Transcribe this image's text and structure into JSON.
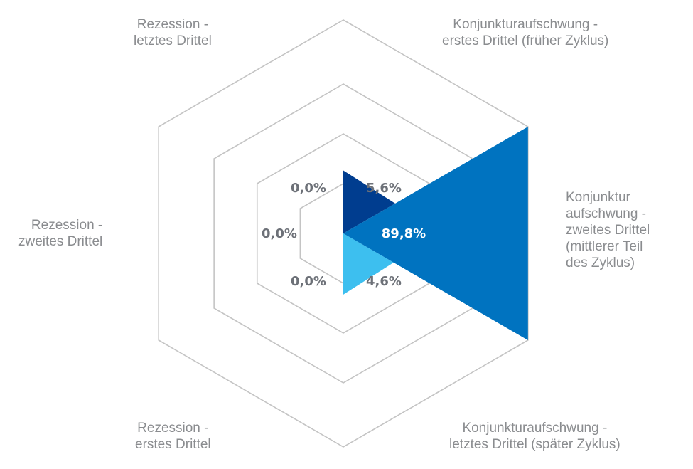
{
  "chart_data": {
    "type": "radar",
    "title": "",
    "value_format": "percent-comma",
    "rings": 4,
    "grid_color": "#c4c4c4",
    "label_color": "#8a8c8f",
    "value_label_color": "#6d7178",
    "highlight_label_color": "#ffffff",
    "categories": [
      {
        "lines": [
          "Konjunkturaufschwung -",
          "erstes Drittel (früher Zyklus)"
        ],
        "value": 5.6,
        "value_label": "5,6%",
        "color": "#003d8f"
      },
      {
        "lines": [
          "Konjunktur",
          "aufschwung -",
          "zweites Drittel",
          "(mittlerer Teil",
          "des Zyklus)"
        ],
        "value": 89.8,
        "value_label": "89,8%",
        "color": "#0073c0"
      },
      {
        "lines": [
          "Konjunkturaufschwung -",
          "letztes Drittel (später Zyklus)"
        ],
        "value": 4.6,
        "value_label": "4,6%",
        "color": "#3dbfef"
      },
      {
        "lines": [
          "Rezession -",
          "erstes Drittel"
        ],
        "value": 0.0,
        "value_label": "0,0%",
        "color": "#cccccc"
      },
      {
        "lines": [
          "Rezession -",
          "zweites Drittel"
        ],
        "value": 0.0,
        "value_label": "0,0%",
        "color": "#cccccc"
      },
      {
        "lines": [
          "Rezession -",
          "letztes Drittel"
        ],
        "value": 0.0,
        "value_label": "0,0%",
        "color": "#cccccc"
      }
    ]
  }
}
